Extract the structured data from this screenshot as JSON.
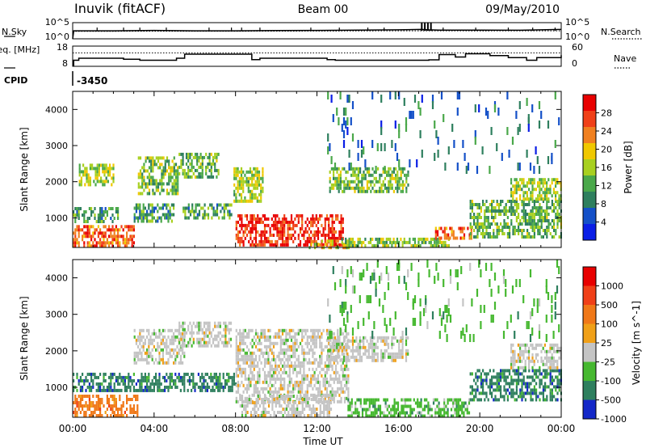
{
  "header": {
    "station": "Inuvik (fitACF)",
    "beam": "Beam 00",
    "date": "09/May/2010"
  },
  "chart_data": [
    {
      "type": "line",
      "panel": "nsky-nsearch",
      "ylabel_left": "N.Sky",
      "ylabel_right": "N.Search",
      "yticks": [
        "10^5",
        "10^0"
      ],
      "yscale": "log",
      "ylim": [
        1,
        100000
      ],
      "series": [
        {
          "name": "N.Sky",
          "style": "solid",
          "x": [
            0,
            0.05,
            2,
            4,
            6,
            8,
            10,
            12,
            14,
            16,
            17.1,
            17.5,
            18,
            20,
            22,
            24
          ],
          "y": [
            1,
            300,
            300,
            400,
            300,
            300,
            350,
            400,
            500,
            600,
            800,
            600,
            500,
            500,
            450,
            800
          ]
        },
        {
          "name": "N.Search",
          "style": "dotted",
          "x": [
            0,
            4,
            8,
            12,
            16,
            20,
            24
          ],
          "y": [
            200,
            220,
            220,
            250,
            300,
            280,
            300
          ]
        }
      ],
      "spikes_x": [
        1.2,
        2.5,
        3.3,
        4.6,
        6.7,
        7.8,
        8.3,
        9.2,
        11.7,
        13.1,
        14.5,
        15.3,
        17.15,
        17.3,
        17.45,
        17.6,
        18.2,
        19.8,
        21.4,
        22.6,
        23.7
      ]
    },
    {
      "type": "line",
      "panel": "freq-nave",
      "ylabel_left": "Freq. [MHz]",
      "ylabel_right": "Nave",
      "yticks_left": [
        "18",
        "8"
      ],
      "yticks_right": [
        "60",
        "0"
      ],
      "ylim_left": [
        8,
        18
      ],
      "ylim_right": [
        0,
        60
      ],
      "series": [
        {
          "name": "Freq",
          "style": "solid",
          "axis": "left",
          "x": [
            0,
            0.05,
            0.3,
            2.5,
            3.3,
            5.1,
            5.5,
            8.8,
            9.2,
            12.5,
            12.9,
            17.5,
            18,
            18.8,
            19.3,
            20.5,
            21.4,
            22.3,
            22.8,
            24
          ],
          "y": [
            8.2,
            11,
            12,
            11.5,
            11,
            12,
            14,
            11.3,
            12,
            11.3,
            11,
            11.2,
            13.8,
            12.6,
            14.2,
            13.3,
            12.3,
            11,
            12.3,
            13.5
          ]
        },
        {
          "name": "Nave",
          "style": "dotted",
          "axis": "right",
          "x": [
            0,
            24
          ],
          "y": [
            40,
            40
          ]
        }
      ]
    },
    {
      "type": "table",
      "panel": "cpid",
      "label": "CPID",
      "segments": [
        {
          "x_start": 0,
          "value": "-3450"
        }
      ]
    },
    {
      "type": "heatmap",
      "panel": "power",
      "ylabel": "Slant Range [km]",
      "yticks": [
        1000,
        2000,
        3000,
        4000
      ],
      "ylim": [
        180,
        4500
      ],
      "colorbar": {
        "title": "Power [dB]",
        "ticks": [
          "4",
          "8",
          "12",
          "16",
          "20",
          "24",
          "28"
        ],
        "vmin": 0,
        "vmax": 32
      },
      "colors": [
        "#0a1ee6",
        "#1450c8",
        "#2e7f5e",
        "#4aa84a",
        "#a8d020",
        "#f0c800",
        "#f08020",
        "#f04018",
        "#e80000"
      ],
      "regions": [
        {
          "x": [
            0,
            3
          ],
          "r": [
            250,
            800
          ],
          "v": 24
        },
        {
          "x": [
            0,
            2.2
          ],
          "r": [
            900,
            1300
          ],
          "v": 10
        },
        {
          "x": [
            0.3,
            2
          ],
          "r": [
            1900,
            2500
          ],
          "v": 14
        },
        {
          "x": [
            3.2,
            5.2
          ],
          "r": [
            1700,
            2700
          ],
          "v": 12
        },
        {
          "x": [
            3,
            5
          ],
          "r": [
            900,
            1400
          ],
          "v": 9
        },
        {
          "x": [
            5.2,
            7.2
          ],
          "r": [
            2100,
            2800
          ],
          "v": 11
        },
        {
          "x": [
            5.4,
            7.8
          ],
          "r": [
            1000,
            1400
          ],
          "v": 10
        },
        {
          "x": [
            7.9,
            9.3
          ],
          "r": [
            1500,
            2400
          ],
          "v": 14
        },
        {
          "x": [
            8,
            13.3
          ],
          "r": [
            250,
            1100
          ],
          "v": 27
        },
        {
          "x": [
            11.6,
            13.6
          ],
          "r": [
            200,
            400
          ],
          "v": 17
        },
        {
          "x": [
            12.6,
            16.5
          ],
          "r": [
            1700,
            2400
          ],
          "v": 12
        },
        {
          "x": [
            13.2,
            18.5
          ],
          "r": [
            200,
            450
          ],
          "v": 13
        },
        {
          "x": [
            17.8,
            19.6
          ],
          "r": [
            400,
            750
          ],
          "v": 24
        },
        {
          "x": [
            19.5,
            24
          ],
          "r": [
            450,
            1500
          ],
          "v": 11
        },
        {
          "x": [
            21.5,
            24
          ],
          "r": [
            1500,
            2100
          ],
          "v": 14
        },
        {
          "x": [
            12.5,
            24
          ],
          "r": [
            2400,
            4500
          ],
          "v": 6,
          "d": 0.05
        }
      ]
    },
    {
      "type": "heatmap",
      "panel": "velocity",
      "ylabel": "Slant Range [km]",
      "yticks": [
        1000,
        2000,
        3000,
        4000
      ],
      "ylim": [
        180,
        4500
      ],
      "colorbar": {
        "title": "Velocity [m s^-1]",
        "ticks": [
          "1000",
          "500",
          "100",
          "25",
          "-25",
          "-100",
          "-500",
          "-1000"
        ]
      },
      "colors": [
        "#1428c8",
        "#2e7f5e",
        "#46b830",
        "#c4c4c4",
        "#f0a018",
        "#f07818",
        "#f04018",
        "#e80000"
      ],
      "regions": [
        {
          "x": [
            0,
            3.2
          ],
          "r": [
            250,
            800
          ],
          "v": 5
        },
        {
          "x": [
            0,
            3
          ],
          "r": [
            900,
            1400
          ],
          "v": 1
        },
        {
          "x": [
            3,
            5.5
          ],
          "r": [
            1700,
            2600
          ],
          "v": 3
        },
        {
          "x": [
            5.2,
            7.8
          ],
          "r": [
            2100,
            2800
          ],
          "v": 3
        },
        {
          "x": [
            3,
            8
          ],
          "r": [
            900,
            1400
          ],
          "v": 1
        },
        {
          "x": [
            8,
            13.5
          ],
          "r": [
            600,
            2600
          ],
          "v": 3
        },
        {
          "x": [
            8.2,
            12.8
          ],
          "r": [
            250,
            800
          ],
          "v": 3
        },
        {
          "x": [
            12.5,
            16.5
          ],
          "r": [
            1700,
            2400
          ],
          "v": 3
        },
        {
          "x": [
            13.5,
            19.5
          ],
          "r": [
            200,
            700
          ],
          "v": 2
        },
        {
          "x": [
            19.5,
            24
          ],
          "r": [
            700,
            1500
          ],
          "v": 1
        },
        {
          "x": [
            21.5,
            24
          ],
          "r": [
            1500,
            2200
          ],
          "v": 3
        },
        {
          "x": [
            12.5,
            24
          ],
          "r": [
            2400,
            4500
          ],
          "v": 2,
          "d": 0.05
        }
      ]
    }
  ],
  "xaxis": {
    "label": "Time UT",
    "ticks": [
      "00:00",
      "04:00",
      "08:00",
      "12:00",
      "16:00",
      "20:00",
      "00:00"
    ],
    "xlim": [
      0,
      24
    ]
  }
}
